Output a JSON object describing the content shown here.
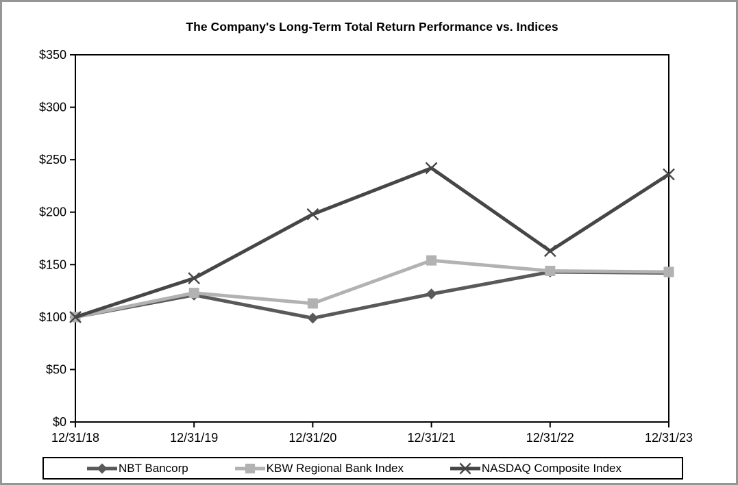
{
  "chart_data": {
    "type": "line",
    "title": "The Company's Long-Term Total Return Performance vs. Indices",
    "categories": [
      "12/31/18",
      "12/31/19",
      "12/31/20",
      "12/31/21",
      "12/31/22",
      "12/31/23"
    ],
    "series": [
      {
        "name": "NBT Bancorp",
        "marker": "diamond",
        "color": "#595959",
        "values": [
          100,
          121,
          99,
          122,
          143,
          142
        ]
      },
      {
        "name": "KBW Regional Bank Index",
        "marker": "square",
        "color": "#b2b2b2",
        "values": [
          100,
          123,
          113,
          154,
          144,
          143
        ]
      },
      {
        "name": "NASDAQ Composite Index",
        "marker": "x",
        "color": "#464646",
        "values": [
          100,
          137,
          198,
          242,
          163,
          236
        ]
      }
    ],
    "ylim": [
      0,
      350
    ],
    "y_tick_step": 50,
    "y_ticks": [
      "$0",
      "$50",
      "$100",
      "$150",
      "$200",
      "$250",
      "$300",
      "$350"
    ],
    "grid": false,
    "legend_position": "bottom",
    "axis_color": "#000000",
    "frame_color": "#969696"
  }
}
